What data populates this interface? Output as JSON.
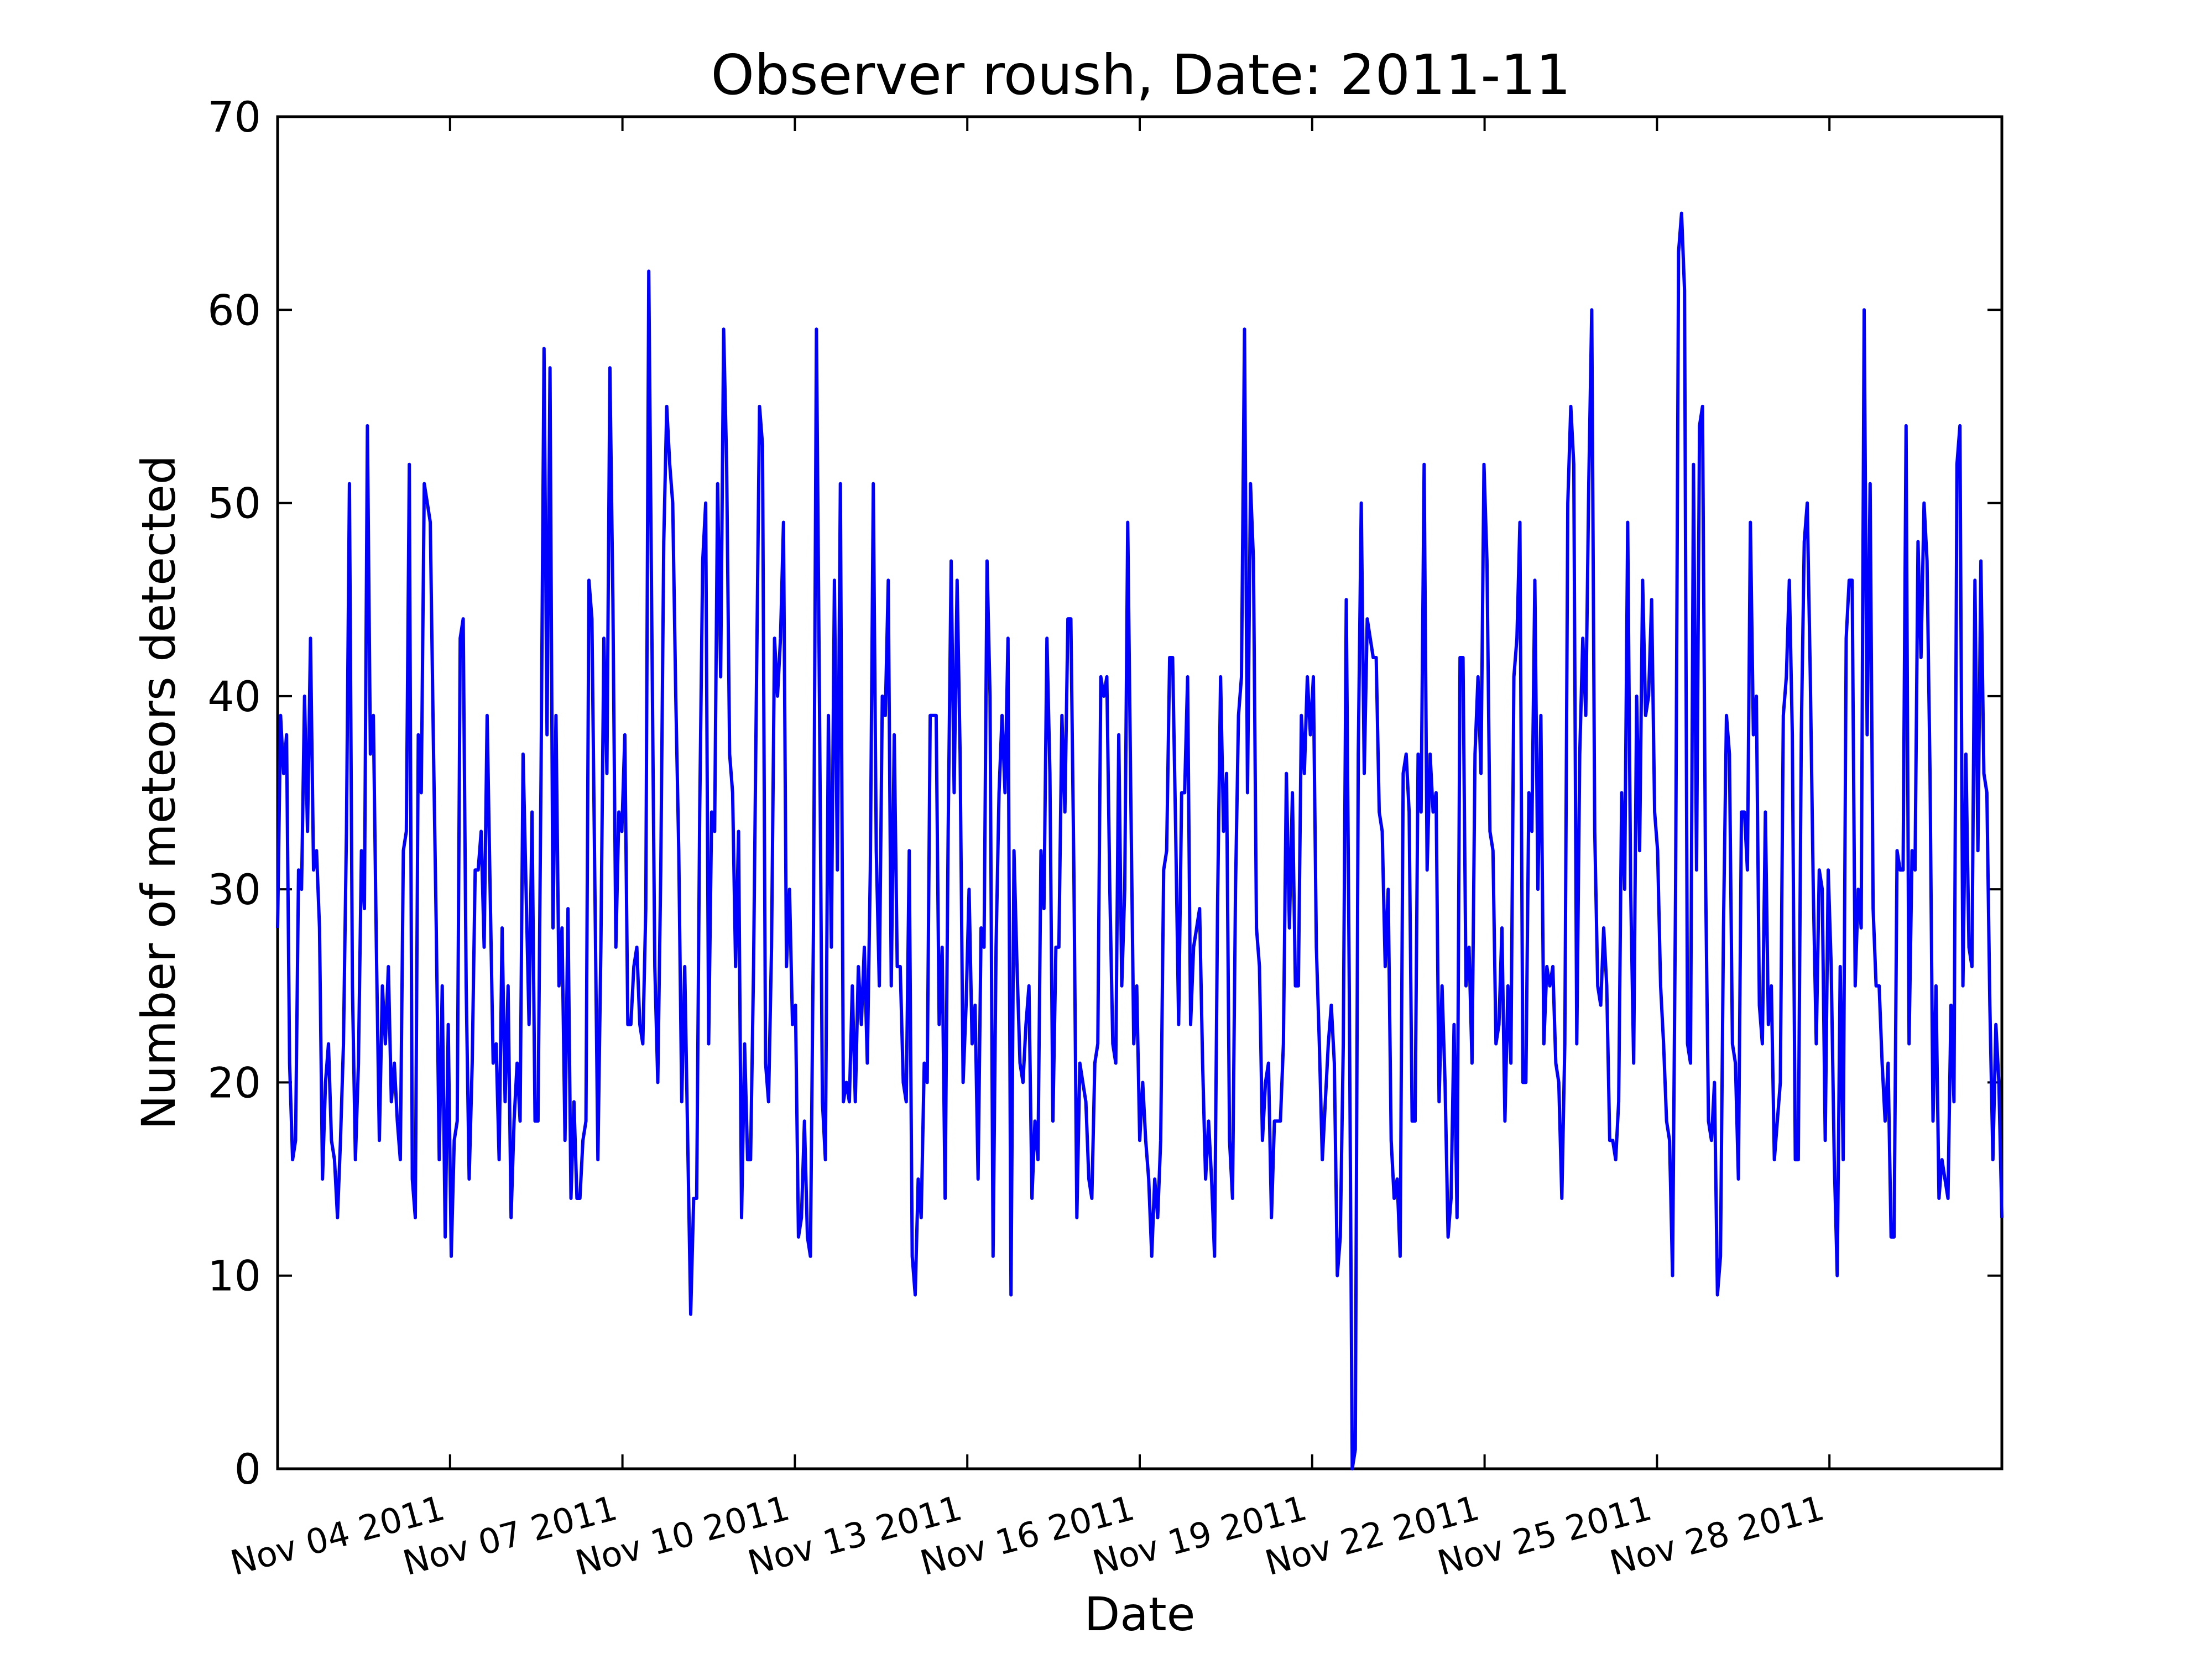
{
  "colors": {
    "line": "#0000ff",
    "axes": "#000000",
    "background": "#ffffff"
  },
  "chart_data": {
    "type": "line",
    "title": "Observer roush, Date: 2011-11",
    "xlabel": "Date",
    "ylabel": "Number of meteors detected",
    "xlim": [
      "2011-11-01",
      "2011-12-01"
    ],
    "ylim": [
      0,
      70
    ],
    "yticks": [
      0,
      10,
      20,
      30,
      40,
      50,
      60,
      70
    ],
    "xticks": [
      {
        "date": "2011-11-04",
        "label": "Nov 04 2011"
      },
      {
        "date": "2011-11-07",
        "label": "Nov 07 2011"
      },
      {
        "date": "2011-11-10",
        "label": "Nov 10 2011"
      },
      {
        "date": "2011-11-13",
        "label": "Nov 13 2011"
      },
      {
        "date": "2011-11-16",
        "label": "Nov 16 2011"
      },
      {
        "date": "2011-11-19",
        "label": "Nov 19 2011"
      },
      {
        "date": "2011-11-22",
        "label": "Nov 22 2011"
      },
      {
        "date": "2011-11-25",
        "label": "Nov 25 2011"
      },
      {
        "date": "2011-11-28",
        "label": "Nov 28 2011"
      }
    ],
    "grid": false,
    "series": [
      {
        "data_resolution": "hourly",
        "start": "2011-11-01T00:00",
        "values": [
          28,
          39,
          36,
          38,
          21,
          16,
          17,
          31,
          30,
          40,
          33,
          43,
          31,
          32,
          28,
          15,
          20,
          22,
          17,
          16,
          13,
          17,
          22,
          33,
          51,
          25,
          16,
          21,
          32,
          29,
          54,
          37,
          39,
          27,
          17,
          25,
          22,
          26,
          19,
          21,
          18,
          16,
          32,
          33,
          52,
          15,
          13,
          38,
          35,
          51,
          50,
          49,
          38,
          28,
          16,
          25,
          12,
          23,
          11,
          17,
          18,
          43,
          44,
          25,
          15,
          21,
          31,
          31,
          33,
          27,
          39,
          30,
          21,
          22,
          16,
          28,
          19,
          25,
          13,
          18,
          21,
          18,
          37,
          30,
          23,
          34,
          18,
          18,
          36,
          58,
          38,
          57,
          28,
          39,
          25,
          28,
          17,
          29,
          14,
          19,
          14,
          14,
          17,
          18,
          46,
          44,
          30,
          16,
          27,
          43,
          36,
          57,
          45,
          27,
          34,
          33,
          38,
          23,
          23,
          26,
          27,
          23,
          22,
          29,
          62,
          44,
          26,
          20,
          31,
          48,
          55,
          52,
          50,
          40,
          32,
          19,
          26,
          17,
          8,
          14,
          14,
          34,
          47,
          50,
          22,
          34,
          33,
          51,
          41,
          59,
          52,
          37,
          35,
          26,
          33,
          13,
          22,
          16,
          16,
          26,
          41,
          55,
          53,
          21,
          19,
          27,
          43,
          40,
          43,
          49,
          26,
          30,
          23,
          24,
          12,
          13,
          18,
          12,
          11,
          28,
          59,
          40,
          19,
          16,
          39,
          27,
          46,
          31,
          51,
          19,
          20,
          19,
          25,
          19,
          26,
          23,
          27,
          21,
          31,
          51,
          32,
          25,
          40,
          39,
          46,
          25,
          38,
          26,
          26,
          20,
          19,
          32,
          11,
          9,
          15,
          13,
          21,
          20,
          39,
          39,
          39,
          23,
          27,
          14,
          33,
          47,
          35,
          46,
          37,
          20,
          24,
          30,
          22,
          24,
          15,
          28,
          27,
          47,
          40,
          11,
          27,
          35,
          39,
          35,
          43,
          9,
          32,
          26,
          21,
          20,
          23,
          25,
          14,
          18,
          16,
          32,
          29,
          43,
          36,
          18,
          27,
          27,
          39,
          34,
          44,
          44,
          31,
          13,
          21,
          20,
          19,
          15,
          14,
          21,
          22,
          41,
          40,
          41,
          30,
          22,
          21,
          38,
          25,
          30,
          49,
          35,
          22,
          25,
          17,
          20,
          17,
          15,
          11,
          15,
          13,
          17,
          31,
          32,
          42,
          42,
          33,
          23,
          35,
          35,
          41,
          23,
          27,
          28,
          29,
          21,
          15,
          18,
          15,
          11,
          29,
          41,
          33,
          36,
          17,
          14,
          30,
          39,
          41,
          59,
          35,
          51,
          47,
          28,
          26,
          17,
          20,
          21,
          13,
          18,
          18,
          18,
          22,
          36,
          28,
          35,
          25,
          25,
          39,
          36,
          41,
          38,
          41,
          27,
          22,
          16,
          19,
          22,
          24,
          21,
          10,
          12,
          22,
          45,
          25,
          0,
          1,
          37,
          50,
          36,
          44,
          43,
          42,
          42,
          34,
          33,
          26,
          30,
          17,
          14,
          15,
          11,
          36,
          37,
          34,
          18,
          18,
          37,
          34,
          52,
          31,
          37,
          34,
          35,
          19,
          25,
          20,
          12,
          14,
          23,
          13,
          42,
          42,
          25,
          27,
          21,
          37,
          41,
          36,
          52,
          47,
          33,
          32,
          22,
          23,
          28,
          18,
          25,
          21,
          41,
          43,
          49,
          20,
          20,
          35,
          33,
          46,
          30,
          39,
          22,
          26,
          25,
          26,
          21,
          20,
          14,
          22,
          50,
          55,
          52,
          22,
          37,
          43,
          39,
          51,
          60,
          33,
          25,
          24,
          28,
          25,
          17,
          17,
          16,
          19,
          35,
          30,
          49,
          30,
          21,
          40,
          32,
          46,
          39,
          40,
          45,
          34,
          32,
          25,
          22,
          18,
          17,
          10,
          30,
          63,
          65,
          61,
          22,
          21,
          52,
          31,
          54,
          55,
          31,
          18,
          17,
          20,
          9,
          11,
          28,
          39,
          37,
          22,
          21,
          15,
          34,
          34,
          31,
          49,
          38,
          40,
          24,
          22,
          34,
          23,
          25,
          16,
          18,
          20,
          39,
          41,
          46,
          38,
          16,
          16,
          38,
          48,
          50,
          41,
          30,
          22,
          31,
          30,
          17,
          31,
          26,
          16,
          10,
          26,
          16,
          43,
          46,
          46,
          25,
          30,
          28,
          60,
          38,
          51,
          29,
          25,
          25,
          21,
          18,
          21,
          12,
          12,
          32,
          31,
          31,
          54,
          22,
          32,
          31,
          48,
          42,
          50,
          47,
          36,
          18,
          25,
          14,
          16,
          15,
          14,
          24,
          19,
          52,
          54,
          25,
          37,
          27,
          26,
          46,
          32,
          47,
          36,
          35,
          24,
          16,
          23,
          20,
          13
        ]
      }
    ]
  }
}
